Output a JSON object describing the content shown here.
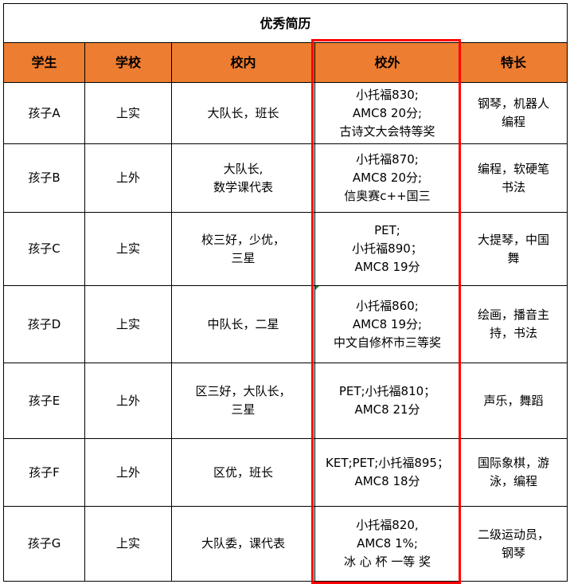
{
  "title": "优秀简历",
  "header_color": "#ED7D31",
  "highlight_color": "#FF0000",
  "columns": [
    "学生",
    "学校",
    "校内",
    "校外",
    "特长"
  ],
  "rows": [
    [
      "孩子A",
      "上实",
      "大队长，班长",
      "小托福830;\nAMC8 20分;\n古诗文大会特等奖",
      "钢琴，机器人\n编程"
    ],
    [
      "孩子B",
      "上外",
      "大队长,\n数学课代表",
      "小托福870;\nAMC8 20分;\n信奥赛c++国三",
      "编程，软硬笔\n书法"
    ],
    [
      "孩子C",
      "上实",
      "校三好，少优，\n三星",
      "PET;\n小托福890；\nAMC8 19分",
      "大提琴，中国\n舞"
    ],
    [
      "孩子D",
      "上实",
      "中队长，二星",
      "小托福860;\nAMC8 19分;\n中文自修杯市三等奖",
      "绘画，播音主\n持，书法"
    ],
    [
      "孩子E",
      "上外",
      "区三好，大队长，\n三星",
      "PET;小托福810；\nAMC8 21分",
      "声乐，舞蹈"
    ],
    [
      "孩子F",
      "上外",
      "区优，班长",
      "KET;PET;小托福895；\nAMC8 18分",
      "国际象棋，游\n泳，编程"
    ],
    [
      "孩子G",
      "上实",
      "大队委，课代表",
      "小托福820,\nAMC8 1%;\n冰 心 杯 一等 奖",
      "二级运动员，\n钢琴"
    ]
  ]
}
